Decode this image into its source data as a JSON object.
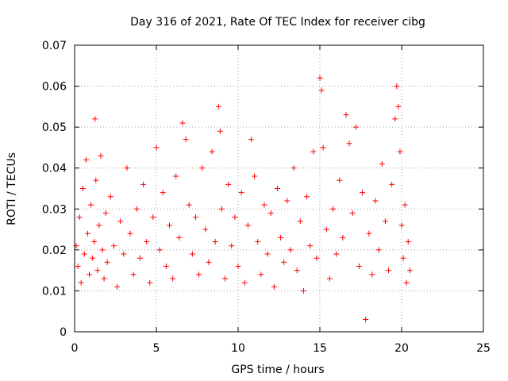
{
  "chart_data": {
    "type": "scatter",
    "title": "Day 316 of 2021, Rate Of TEC Index for receiver cibg",
    "xlabel": "GPS time / hours",
    "ylabel": "ROTI / TECUs",
    "xlim": [
      0,
      25
    ],
    "ylim": [
      0,
      0.07
    ],
    "x_ticks": [
      0,
      5,
      10,
      15,
      20,
      25
    ],
    "y_ticks": [
      0,
      0.01,
      0.02,
      0.03,
      0.04,
      0.05,
      0.06,
      0.07
    ],
    "x_tick_labels": [
      "0",
      "5",
      "10",
      "15",
      "20",
      "25"
    ],
    "y_tick_labels": [
      "0",
      "0.01",
      "0.02",
      "0.03",
      "0.04",
      "0.05",
      "0.06",
      "0.07"
    ],
    "grid": true,
    "marker": "plus",
    "color": "#ff0000",
    "series": [
      {
        "points": [
          [
            0.1,
            0.021
          ],
          [
            0.2,
            0.016
          ],
          [
            0.3,
            0.028
          ],
          [
            0.4,
            0.012
          ],
          [
            0.5,
            0.035
          ],
          [
            0.6,
            0.019
          ],
          [
            0.7,
            0.042
          ],
          [
            0.8,
            0.024
          ],
          [
            0.9,
            0.014
          ],
          [
            1.0,
            0.031
          ],
          [
            1.1,
            0.018
          ],
          [
            1.2,
            0.022
          ],
          [
            1.25,
            0.052
          ],
          [
            1.3,
            0.037
          ],
          [
            1.4,
            0.015
          ],
          [
            1.5,
            0.026
          ],
          [
            1.6,
            0.043
          ],
          [
            1.7,
            0.02
          ],
          [
            1.8,
            0.013
          ],
          [
            1.9,
            0.029
          ],
          [
            2.0,
            0.017
          ],
          [
            2.2,
            0.033
          ],
          [
            2.4,
            0.021
          ],
          [
            2.6,
            0.011
          ],
          [
            2.8,
            0.027
          ],
          [
            3.0,
            0.019
          ],
          [
            3.2,
            0.04
          ],
          [
            3.4,
            0.024
          ],
          [
            3.6,
            0.014
          ],
          [
            3.8,
            0.03
          ],
          [
            4.0,
            0.018
          ],
          [
            4.2,
            0.036
          ],
          [
            4.4,
            0.022
          ],
          [
            4.6,
            0.012
          ],
          [
            4.8,
            0.028
          ],
          [
            5.0,
            0.045
          ],
          [
            5.2,
            0.02
          ],
          [
            5.4,
            0.034
          ],
          [
            5.6,
            0.016
          ],
          [
            5.8,
            0.026
          ],
          [
            6.0,
            0.013
          ],
          [
            6.2,
            0.038
          ],
          [
            6.4,
            0.023
          ],
          [
            6.6,
            0.051
          ],
          [
            6.8,
            0.047
          ],
          [
            7.0,
            0.031
          ],
          [
            7.2,
            0.019
          ],
          [
            7.4,
            0.028
          ],
          [
            7.6,
            0.014
          ],
          [
            7.8,
            0.04
          ],
          [
            8.0,
            0.025
          ],
          [
            8.2,
            0.017
          ],
          [
            8.4,
            0.044
          ],
          [
            8.6,
            0.022
          ],
          [
            8.8,
            0.055
          ],
          [
            8.9,
            0.049
          ],
          [
            9.0,
            0.03
          ],
          [
            9.2,
            0.013
          ],
          [
            9.4,
            0.036
          ],
          [
            9.6,
            0.021
          ],
          [
            9.8,
            0.028
          ],
          [
            10.0,
            0.016
          ],
          [
            10.2,
            0.034
          ],
          [
            10.4,
            0.012
          ],
          [
            10.6,
            0.026
          ],
          [
            10.8,
            0.047
          ],
          [
            11.0,
            0.038
          ],
          [
            11.2,
            0.022
          ],
          [
            11.4,
            0.014
          ],
          [
            11.6,
            0.031
          ],
          [
            11.8,
            0.019
          ],
          [
            12.0,
            0.029
          ],
          [
            12.2,
            0.011
          ],
          [
            12.4,
            0.035
          ],
          [
            12.6,
            0.023
          ],
          [
            12.8,
            0.017
          ],
          [
            13.0,
            0.032
          ],
          [
            13.2,
            0.02
          ],
          [
            13.4,
            0.04
          ],
          [
            13.6,
            0.015
          ],
          [
            13.8,
            0.027
          ],
          [
            14.0,
            0.01
          ],
          [
            14.2,
            0.033
          ],
          [
            14.4,
            0.021
          ],
          [
            14.6,
            0.044
          ],
          [
            14.8,
            0.018
          ],
          [
            15.0,
            0.062
          ],
          [
            15.1,
            0.059
          ],
          [
            15.2,
            0.045
          ],
          [
            15.4,
            0.025
          ],
          [
            15.6,
            0.013
          ],
          [
            15.8,
            0.03
          ],
          [
            16.0,
            0.019
          ],
          [
            16.2,
            0.037
          ],
          [
            16.4,
            0.023
          ],
          [
            16.6,
            0.053
          ],
          [
            16.8,
            0.046
          ],
          [
            17.0,
            0.029
          ],
          [
            17.2,
            0.05
          ],
          [
            17.4,
            0.016
          ],
          [
            17.6,
            0.034
          ],
          [
            17.8,
            0.003
          ],
          [
            18.0,
            0.024
          ],
          [
            18.2,
            0.014
          ],
          [
            18.4,
            0.032
          ],
          [
            18.6,
            0.02
          ],
          [
            18.8,
            0.041
          ],
          [
            19.0,
            0.027
          ],
          [
            19.2,
            0.015
          ],
          [
            19.4,
            0.036
          ],
          [
            19.6,
            0.052
          ],
          [
            19.7,
            0.06
          ],
          [
            19.8,
            0.055
          ],
          [
            19.9,
            0.044
          ],
          [
            20.0,
            0.026
          ],
          [
            20.1,
            0.018
          ],
          [
            20.2,
            0.031
          ],
          [
            20.3,
            0.012
          ],
          [
            20.4,
            0.022
          ],
          [
            20.5,
            0.015
          ]
        ]
      }
    ]
  }
}
